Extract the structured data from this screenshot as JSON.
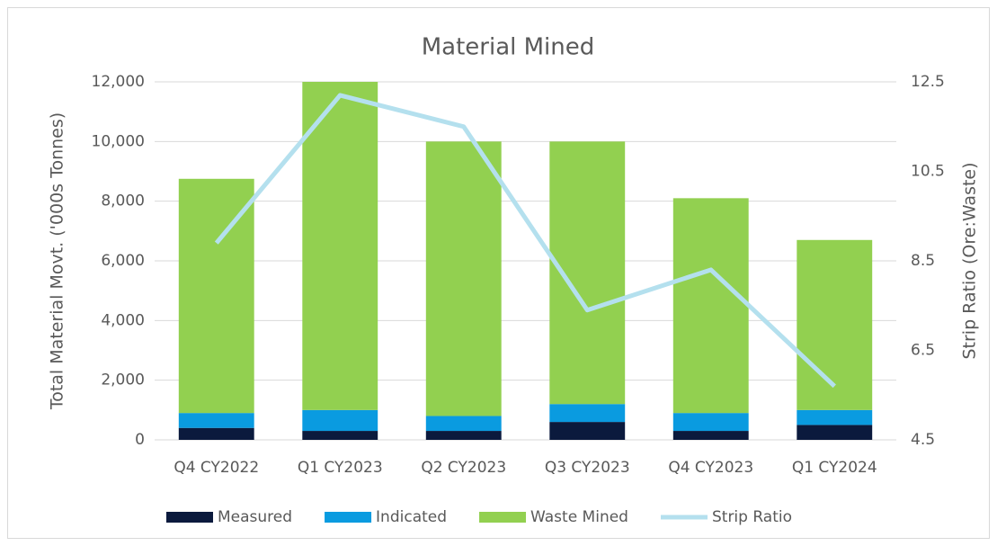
{
  "chart_data": {
    "type": "bar",
    "stacked": true,
    "title": "Material Mined",
    "y_label": "Total Material Movt. ('000s Tonnes)",
    "y2_label": "Strip Ratio (Ore:Waste)",
    "categories": [
      "Q4 CY2022",
      "Q1 CY2023",
      "Q2 CY2023",
      "Q3 CY2023",
      "Q4 CY2023",
      "Q1 CY2024"
    ],
    "series": [
      {
        "name": "Measured",
        "color": "#0b1a3d",
        "values": [
          400,
          300,
          300,
          600,
          300,
          500
        ]
      },
      {
        "name": "Indicated",
        "color": "#0a9be0",
        "values": [
          500,
          700,
          500,
          600,
          600,
          500
        ]
      },
      {
        "name": "Waste Mined",
        "color": "#92d050",
        "values": [
          7850,
          11000,
          9200,
          8800,
          7200,
          5700
        ]
      },
      {
        "name": "Strip Ratio",
        "color": "#b4e0ee",
        "type": "line",
        "axis": "y2",
        "values": [
          8.9,
          12.2,
          11.5,
          7.4,
          8.3,
          5.7
        ]
      }
    ],
    "ylim": [
      0,
      12000
    ],
    "yticks": [
      0,
      {
        "value": 2000,
        "label": "2,000"
      },
      {
        "value": 4000,
        "label": "4,000"
      },
      {
        "value": 6000,
        "label": "6,000"
      },
      {
        "value": 8000,
        "label": "8,000"
      },
      {
        "value": 10000,
        "label": "10,000"
      },
      {
        "value": 12000,
        "label": "12,000"
      }
    ],
    "y2lim": [
      4.5,
      12.5
    ],
    "y2ticks": [
      4.5,
      6.5,
      8.5,
      10.5,
      12.5
    ],
    "grid": true,
    "legend": "bottom"
  }
}
